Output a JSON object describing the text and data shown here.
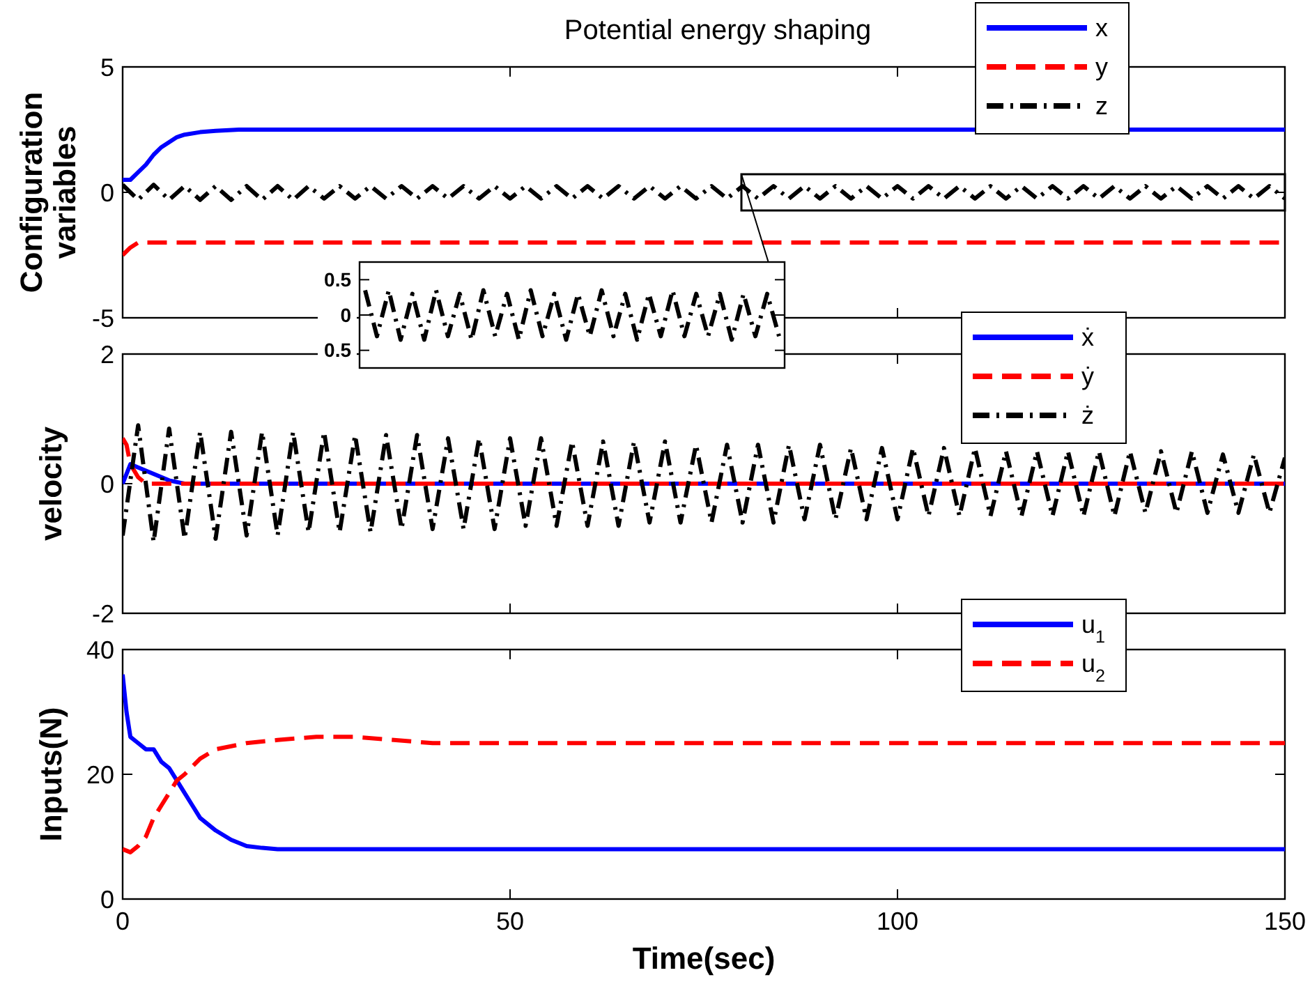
{
  "chart_data": [
    {
      "type": "line",
      "title": "Potential energy shaping",
      "ylabel": "Configuration variables",
      "xlim": [
        0,
        150
      ],
      "xticks": [
        0,
        50,
        100,
        150
      ],
      "ylim": [
        -5,
        5
      ],
      "yticks": [
        -5,
        0,
        5
      ],
      "tick_labels": "y",
      "grid": false,
      "legend": "top right",
      "series": [
        {
          "name": "x",
          "color": "#0000ff",
          "line_style": "solid",
          "x": [
            0,
            1,
            2,
            3,
            4,
            5,
            6,
            7,
            8,
            10,
            12,
            15,
            20,
            30,
            50,
            100,
            150
          ],
          "values": [
            0.5,
            0.5,
            0.8,
            1.1,
            1.5,
            1.8,
            2.0,
            2.2,
            2.3,
            2.4,
            2.45,
            2.5,
            2.5,
            2.5,
            2.5,
            2.5,
            2.5
          ]
        },
        {
          "name": "y",
          "color": "#ff0000",
          "line_style": "dashed",
          "x": [
            0,
            1,
            2,
            3,
            5,
            10,
            50,
            100,
            150
          ],
          "values": [
            -2.5,
            -2.2,
            -2.0,
            -2.0,
            -2.0,
            -2.0,
            -2.0,
            -2.0,
            -2.0
          ]
        },
        {
          "name": "z",
          "color": "#000000",
          "line_style": "dashdot",
          "x": [
            0,
            2,
            4,
            6,
            8,
            10,
            12,
            14,
            16,
            18,
            20,
            22,
            24,
            26,
            28,
            30,
            32,
            34,
            36,
            38,
            40,
            42,
            44,
            46,
            48,
            50,
            52,
            54,
            56,
            58,
            60,
            62,
            64,
            66,
            68,
            70,
            72,
            74,
            76,
            78,
            80,
            82,
            84,
            86,
            88,
            90,
            92,
            94,
            96,
            98,
            100,
            102,
            104,
            106,
            108,
            110,
            112,
            114,
            116,
            118,
            120,
            122,
            124,
            126,
            128,
            130,
            132,
            134,
            136,
            138,
            140,
            142,
            144,
            146,
            148,
            150
          ],
          "values": [
            0.3,
            -0.3,
            0.3,
            -0.3,
            0.25,
            -0.3,
            0.25,
            -0.3,
            0.25,
            -0.3,
            0.25,
            -0.3,
            0.25,
            -0.25,
            0.25,
            -0.25,
            0.25,
            -0.25,
            0.25,
            -0.25,
            0.25,
            -0.25,
            0.25,
            -0.25,
            0.25,
            -0.25,
            0.25,
            -0.25,
            0.25,
            -0.25,
            0.25,
            -0.25,
            0.25,
            -0.25,
            0.25,
            -0.25,
            0.25,
            -0.25,
            0.25,
            -0.25,
            0.25,
            -0.25,
            0.25,
            -0.25,
            0.25,
            -0.25,
            0.25,
            -0.25,
            0.25,
            -0.25,
            0.25,
            -0.25,
            0.25,
            -0.25,
            0.25,
            -0.25,
            0.25,
            -0.25,
            0.25,
            -0.25,
            0.25,
            -0.25,
            0.25,
            -0.25,
            0.25,
            -0.25,
            0.25,
            -0.25,
            0.25,
            -0.25,
            0.25,
            -0.25,
            0.25,
            -0.25,
            0.25,
            -0.25
          ]
        }
      ]
    },
    {
      "type": "line",
      "categories": [
        null,
        null,
        null,
        null,
        null,
        null,
        null,
        null,
        null,
        null,
        null,
        null,
        null,
        null,
        null,
        null,
        null,
        null,
        null,
        null,
        null,
        null,
        null,
        null,
        null,
        null,
        null,
        null,
        null,
        null,
        null,
        null,
        null,
        null,
        null,
        null
      ],
      "ylim": [
        -0.75,
        0.75
      ],
      "yticks": [
        {
          "value": -0.5,
          "label": "0.5"
        },
        0,
        0.5
      ],
      "tick_labels": "y",
      "grid": false,
      "series": [
        {
          "color": "#000000",
          "line_style": "dashdot",
          "values": [
            0.35,
            -0.3,
            0.35,
            -0.35,
            0.3,
            -0.35,
            0.35,
            -0.3,
            0.3,
            -0.35,
            0.35,
            -0.3,
            0.3,
            -0.35,
            0.35,
            -0.3,
            0.3,
            -0.35,
            0.3,
            -0.3,
            0.35,
            -0.3,
            0.3,
            -0.35,
            0.3,
            -0.3,
            0.35,
            -0.3,
            0.3,
            -0.3,
            0.3,
            -0.35,
            0.3,
            -0.3,
            0.3,
            -0.3
          ]
        }
      ]
    },
    {
      "type": "line",
      "ylabel": "velocity",
      "xlim": [
        0,
        150
      ],
      "xticks": [
        0,
        50,
        100,
        150
      ],
      "ylim": [
        -2,
        2
      ],
      "yticks": [
        -2,
        0,
        2
      ],
      "tick_labels": "y",
      "grid": false,
      "legend": "top right",
      "series": [
        {
          "name": "ẋ",
          "color": "#0000ff",
          "line_style": "solid",
          "x": [
            0,
            1,
            2,
            4,
            6,
            8,
            10,
            50,
            100,
            150
          ],
          "values": [
            0,
            0.3,
            0.25,
            0.15,
            0.05,
            0,
            0,
            0,
            0,
            0
          ]
        },
        {
          "name": "ẏ",
          "color": "#ff0000",
          "line_style": "dashed",
          "x": [
            0,
            0.5,
            1,
            2,
            3,
            5,
            50,
            100,
            150
          ],
          "values": [
            0.7,
            0.6,
            0.3,
            0.1,
            0,
            0,
            0,
            0,
            0
          ]
        },
        {
          "name": "ż",
          "color": "#000000",
          "line_style": "dashdot",
          "x": [
            0,
            2,
            4,
            6,
            8,
            10,
            12,
            14,
            16,
            18,
            20,
            22,
            24,
            26,
            28,
            30,
            32,
            34,
            36,
            38,
            40,
            42,
            44,
            46,
            48,
            50,
            52,
            54,
            56,
            58,
            60,
            62,
            64,
            66,
            68,
            70,
            72,
            74,
            76,
            78,
            80,
            82,
            84,
            86,
            88,
            90,
            92,
            94,
            96,
            98,
            100,
            102,
            104,
            106,
            108,
            110,
            112,
            114,
            116,
            118,
            120,
            122,
            124,
            126,
            128,
            130,
            132,
            134,
            136,
            138,
            140,
            142,
            144,
            146,
            148,
            150
          ],
          "values": [
            -0.8,
            0.9,
            -0.9,
            0.85,
            -0.85,
            0.8,
            -0.85,
            0.8,
            -0.8,
            0.8,
            -0.8,
            0.8,
            -0.75,
            0.8,
            -0.75,
            0.75,
            -0.75,
            0.75,
            -0.7,
            0.75,
            -0.7,
            0.7,
            -0.7,
            0.7,
            -0.7,
            0.7,
            -0.65,
            0.7,
            -0.65,
            0.65,
            -0.65,
            0.65,
            -0.65,
            0.65,
            -0.6,
            0.65,
            -0.6,
            0.6,
            -0.6,
            0.6,
            -0.6,
            0.6,
            -0.6,
            0.6,
            -0.55,
            0.6,
            -0.55,
            0.55,
            -0.55,
            0.55,
            -0.55,
            0.55,
            -0.5,
            0.55,
            -0.5,
            0.55,
            -0.5,
            0.5,
            -0.5,
            0.5,
            -0.5,
            0.5,
            -0.5,
            0.5,
            -0.5,
            0.5,
            -0.45,
            0.5,
            -0.45,
            0.5,
            -0.45,
            0.45,
            -0.45,
            0.45,
            -0.45,
            0.4
          ]
        }
      ]
    },
    {
      "type": "line",
      "ylabel": "Inputs(N)",
      "xlabel": "Time(sec)",
      "xlim": [
        0,
        150
      ],
      "xticks": [
        0,
        50,
        100,
        150
      ],
      "ylim": [
        0,
        40
      ],
      "yticks": [
        0,
        20,
        40
      ],
      "grid": false,
      "legend": "top right",
      "series": [
        {
          "name": "u$_{1}$",
          "color": "#0000ff",
          "line_style": "solid",
          "x": [
            0,
            0.5,
            1,
            2,
            3,
            4,
            5,
            6,
            7,
            8,
            9,
            10,
            12,
            14,
            16,
            18,
            20,
            30,
            50,
            100,
            150
          ],
          "values": [
            36,
            30,
            26,
            25,
            24,
            24,
            22,
            21,
            19,
            17,
            15,
            13,
            11,
            9.5,
            8.5,
            8.2,
            8,
            8,
            8,
            8,
            8
          ]
        },
        {
          "name": "u$_{2}$",
          "color": "#ff0000",
          "line_style": "dashed",
          "x": [
            0,
            1,
            2,
            3,
            4,
            5,
            6,
            7,
            8,
            10,
            12,
            14,
            16,
            20,
            25,
            30,
            35,
            40,
            50,
            100,
            150
          ],
          "values": [
            8,
            7.5,
            8.5,
            10,
            13,
            15,
            17,
            19,
            20,
            22.5,
            24,
            24.5,
            25,
            25.5,
            26,
            26,
            25.5,
            25,
            25,
            25,
            25
          ]
        }
      ]
    }
  ]
}
